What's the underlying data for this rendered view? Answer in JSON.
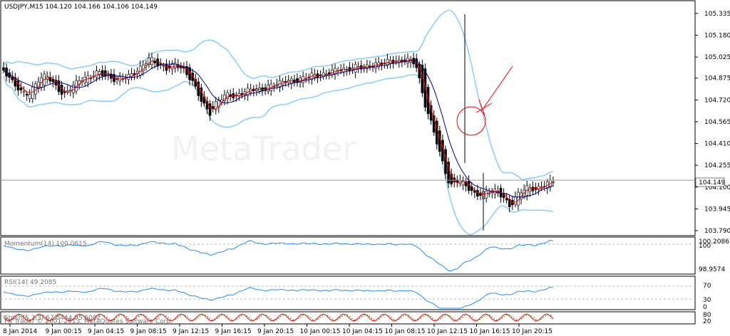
{
  "window": {
    "symbol_title": "USDJPY,M15  104.120 104.166 104.106 104.149",
    "watermark": "MetaTrader"
  },
  "colors": {
    "background": "#ffffff",
    "grid_border": "#000000",
    "bull_candle": "#ffffff",
    "bear_candle": "#000000",
    "bollinger": "#87cefa",
    "ma_fast": "#ff0000",
    "ma_slow": "#00008b",
    "momentum_line": "#1e90ff",
    "rsi_line": "#1e90ff",
    "stoch_main": "#ff0000",
    "stoch_signal": "#228b22",
    "annotation": "#ff0000"
  },
  "price_axis": {
    "ticks": [
      "105.335",
      "105.180",
      "105.025",
      "104.875",
      "104.720",
      "104.565",
      "104.410",
      "104.255",
      "104.100",
      "103.945",
      "103.790"
    ],
    "tick_values": [
      105.335,
      105.18,
      105.025,
      104.875,
      104.72,
      104.565,
      104.41,
      104.255,
      104.1,
      103.945,
      103.79
    ],
    "current_price_label": "104.149",
    "current_price": 104.149
  },
  "time_axis": {
    "labels": [
      "8 Jan 2014",
      "9 Jan 00:15",
      "9 Jan 04:15",
      "9 Jan 08:15",
      "9 Jan 12:15",
      "9 Jan 16:15",
      "9 Jan 20:15",
      "10 Jan 00:15",
      "10 Jan 04:15",
      "10 Jan 08:15",
      "10 Jan 12:15",
      "10 Jan 16:15",
      "10 Jan 20:15"
    ]
  },
  "momentum_panel": {
    "label": "Momentum(14) 100.0615",
    "scale_top": "100.2086",
    "scale_mid": "100",
    "scale_bottom": "98.9574"
  },
  "rsi_panel": {
    "label": "RSI(14) 49.2085",
    "levels": [
      "70",
      "30",
      "0"
    ]
  },
  "stoch_panel": {
    "label": "Stoch(5,3,3) 67.0444 55.6002",
    "copyright": "FX Trader © 2001-2013, MetaQuotes Software Corp.",
    "levels": [
      "80",
      "20"
    ]
  },
  "chart_data": {
    "type": "candlestick",
    "title": "USDJPY,M15  104.120 104.166 104.106 104.149",
    "ylim": [
      103.77,
      105.39
    ],
    "ohlc_path": [
      [
        104.95,
        104.93
      ],
      [
        104.9,
        104.85
      ],
      [
        104.82,
        104.78
      ],
      [
        104.72,
        104.76
      ],
      [
        104.78,
        104.86
      ],
      [
        104.86,
        104.9
      ],
      [
        104.88,
        104.82
      ],
      [
        104.8,
        104.75
      ],
      [
        104.76,
        104.82
      ],
      [
        104.84,
        104.87
      ],
      [
        104.86,
        104.88
      ],
      [
        104.9,
        104.92
      ],
      [
        104.93,
        104.89
      ],
      [
        104.88,
        104.86
      ],
      [
        104.86,
        104.88
      ],
      [
        104.89,
        104.9
      ],
      [
        104.91,
        104.95
      ],
      [
        104.98,
        105.02
      ],
      [
        105.0,
        104.97
      ],
      [
        104.96,
        104.94
      ],
      [
        104.95,
        104.98
      ],
      [
        104.97,
        104.93
      ],
      [
        104.92,
        104.85
      ],
      [
        104.8,
        104.72
      ],
      [
        104.68,
        104.62
      ],
      [
        104.66,
        104.72
      ],
      [
        104.74,
        104.76
      ],
      [
        104.76,
        104.74
      ],
      [
        104.75,
        104.78
      ],
      [
        104.78,
        104.8
      ],
      [
        104.8,
        104.79
      ],
      [
        104.79,
        104.82
      ],
      [
        104.82,
        104.84
      ],
      [
        104.84,
        104.86
      ],
      [
        104.86,
        104.85
      ],
      [
        104.85,
        104.88
      ],
      [
        104.88,
        104.9
      ],
      [
        104.9,
        104.89
      ],
      [
        104.9,
        104.92
      ],
      [
        104.92,
        104.94
      ],
      [
        104.94,
        104.93
      ],
      [
        104.93,
        104.96
      ],
      [
        104.96,
        104.95
      ],
      [
        104.95,
        104.97
      ],
      [
        104.97,
        104.98
      ],
      [
        104.98,
        105.0
      ],
      [
        105.0,
        104.99
      ],
      [
        104.99,
        105.01
      ],
      [
        105.01,
        104.98
      ],
      [
        104.96,
        104.7
      ],
      [
        104.62,
        104.52
      ],
      [
        104.48,
        104.3
      ],
      [
        104.22,
        104.1
      ],
      [
        104.12,
        104.16
      ],
      [
        104.14,
        104.1
      ],
      [
        104.08,
        104.04
      ],
      [
        104.02,
        104.06
      ],
      [
        104.06,
        104.08
      ],
      [
        104.08,
        104.04
      ],
      [
        104.0,
        103.96
      ],
      [
        103.98,
        104.06
      ],
      [
        104.06,
        104.1
      ],
      [
        104.1,
        104.08
      ],
      [
        104.09,
        104.12
      ],
      [
        104.12,
        104.149
      ]
    ]
  }
}
